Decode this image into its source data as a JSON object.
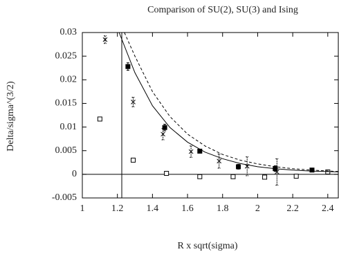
{
  "chart_data": {
    "type": "scatter",
    "title": "Comparison of SU(2), SU(3) and Ising",
    "x_label": "R x sqrt(sigma)",
    "y_label": "Delta/sigma^(3/2)",
    "xlim": [
      1,
      2.46
    ],
    "ylim": [
      -0.005,
      0.03
    ],
    "xticks": [
      1,
      1.2,
      1.4,
      1.6,
      1.8,
      2,
      2.2,
      2.4
    ],
    "yticks": [
      -0.005,
      0,
      0.005,
      0.01,
      0.015,
      0.02,
      0.025,
      0.03
    ],
    "vline": 1.225,
    "hline": 0,
    "series": [
      {
        "marker": "square-filled",
        "color": "#000000",
        "x": [
          1.26,
          1.47,
          1.67,
          1.89,
          2.1,
          2.31
        ],
        "values": [
          0.0228,
          0.0099,
          0.0049,
          0.0016,
          0.0012,
          0.0009
        ],
        "errors": [
          0.0008,
          0.0007,
          0.0004,
          0.0005,
          0.0006,
          0.0004
        ]
      },
      {
        "marker": "cross",
        "color": "#000000",
        "x": [
          1.13,
          1.29,
          1.46,
          1.62,
          1.78,
          1.94,
          2.11
        ],
        "values": [
          0.0285,
          0.0153,
          0.0085,
          0.0048,
          0.0028,
          0.0017,
          0.0005
        ],
        "errors": [
          0.0008,
          0.001,
          0.0012,
          0.0012,
          0.0015,
          0.002,
          0.0028
        ]
      },
      {
        "marker": "square-open",
        "color": "#000000",
        "x": [
          1.1,
          1.29,
          1.48,
          1.67,
          1.86,
          2.04,
          2.22,
          2.4
        ],
        "values": [
          0.0117,
          0.003,
          0.0002,
          -0.0005,
          -0.0005,
          -0.0006,
          -0.0004,
          0.0005
        ]
      },
      {
        "marker": "line",
        "style": "solid",
        "color": "#000000",
        "x": [
          1.21,
          1.3,
          1.4,
          1.5,
          1.6,
          1.7,
          1.8,
          1.9,
          2.0,
          2.1,
          2.2,
          2.3,
          2.46
        ],
        "values": [
          0.03,
          0.0215,
          0.0145,
          0.0099,
          0.0068,
          0.0047,
          0.0033,
          0.0023,
          0.0016,
          0.0012,
          0.0009,
          0.0007,
          0.0005
        ]
      },
      {
        "marker": "line",
        "style": "dashed",
        "color": "#000000",
        "x": [
          1.24,
          1.3,
          1.4,
          1.5,
          1.6,
          1.7,
          1.8,
          1.9,
          2.0,
          2.1,
          2.2,
          2.3,
          2.46
        ],
        "values": [
          0.03,
          0.025,
          0.0175,
          0.0122,
          0.0085,
          0.006,
          0.0042,
          0.003,
          0.0022,
          0.0016,
          0.0012,
          0.0009,
          0.0006
        ]
      }
    ]
  }
}
